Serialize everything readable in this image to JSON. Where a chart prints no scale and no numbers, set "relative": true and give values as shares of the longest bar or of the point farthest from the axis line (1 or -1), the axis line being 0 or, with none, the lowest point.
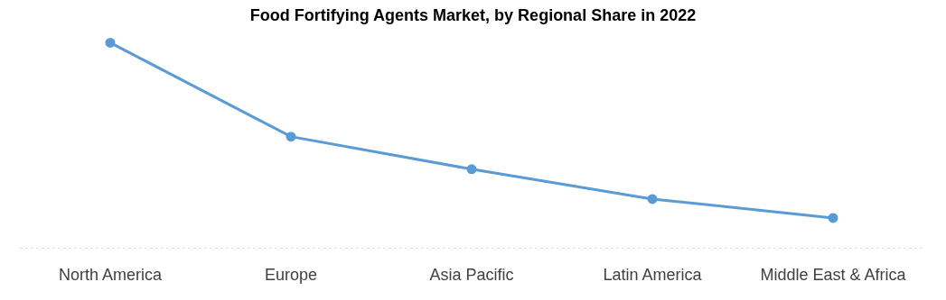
{
  "chart_data": {
    "type": "line",
    "title": "Food Fortifying Agents Market, by Regional Share in 2022",
    "categories": [
      "North America",
      "Europe",
      "Asia Pacific",
      "Latin America",
      "Middle East & Africa"
    ],
    "relative": true,
    "series": [
      {
        "color": "#5b9bd5",
        "values": [
          1,
          0.544,
          0.386,
          0.241,
          0.149
        ]
      }
    ],
    "marker": "circle",
    "line_style": "solid"
  }
}
